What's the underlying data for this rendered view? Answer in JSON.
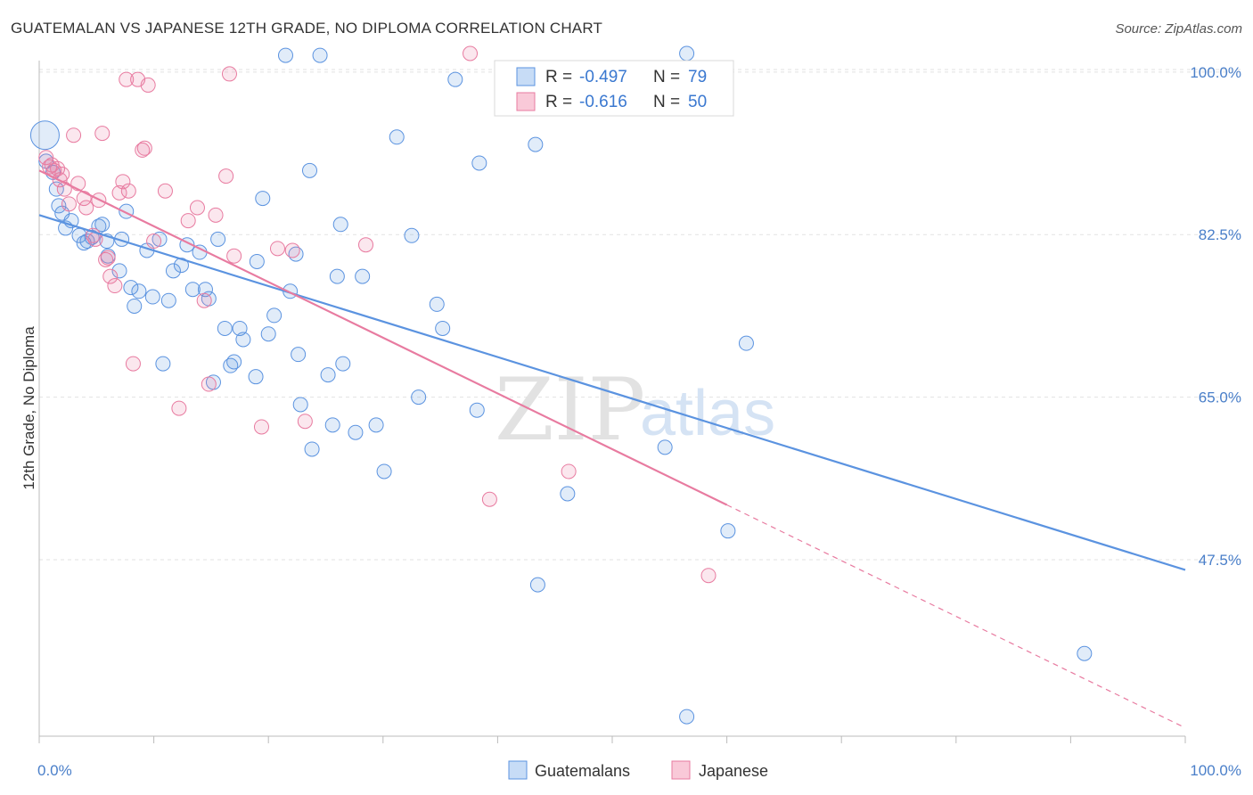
{
  "header": {
    "title": "GUATEMALAN VS JAPANESE 12TH GRADE, NO DIPLOMA CORRELATION CHART",
    "source": "Source: ZipAtlas.com"
  },
  "watermark": {
    "zip": "ZIP",
    "atlas": "atlas"
  },
  "legend": {
    "rows": [
      {
        "r_label": "R =",
        "r_value": "-0.497",
        "n_label": "N =",
        "n_value": "79",
        "color": "#5b93e0"
      },
      {
        "r_label": "R =",
        "r_value": "-0.616",
        "n_label": "N =",
        "n_value": "50",
        "color": "#e87ba0"
      }
    ]
  },
  "bottom_legend": {
    "items": [
      "Guatemalans",
      "Japanese"
    ]
  },
  "chart_data": {
    "type": "scatter",
    "title": "GUATEMALAN VS JAPANESE 12TH GRADE, NO DIPLOMA CORRELATION CHART",
    "xlabel": "",
    "ylabel": "12th Grade, No Diploma",
    "xlim": [
      0,
      100
    ],
    "ylim": [
      28.5,
      102
    ],
    "x_ticks": [
      "0.0%",
      "100.0%"
    ],
    "y_ticks": [
      {
        "value": 100.0,
        "label": "100.0%"
      },
      {
        "value": 82.5,
        "label": "82.5%"
      },
      {
        "value": 65.0,
        "label": "65.0%"
      },
      {
        "value": 47.5,
        "label": "47.5%"
      }
    ],
    "grid": true,
    "legend_position": "top-center",
    "series": [
      {
        "name": "Guatemalans",
        "color": "#5b93e0",
        "trend": {
          "x": [
            0,
            100
          ],
          "y": [
            84.6,
            46.4
          ]
        },
        "points": [
          [
            0.5,
            93.2
          ],
          [
            0.6,
            90.4
          ],
          [
            1.2,
            89.2
          ],
          [
            1.5,
            87.4
          ],
          [
            1.7,
            85.6
          ],
          [
            2.0,
            84.8
          ],
          [
            2.3,
            83.2
          ],
          [
            2.8,
            84.0
          ],
          [
            3.5,
            82.4
          ],
          [
            3.9,
            81.6
          ],
          [
            4.2,
            81.8
          ],
          [
            4.6,
            82.2
          ],
          [
            5.2,
            83.4
          ],
          [
            5.5,
            83.6
          ],
          [
            5.9,
            81.8
          ],
          [
            6.0,
            80.2
          ],
          [
            7.0,
            78.6
          ],
          [
            7.2,
            82.0
          ],
          [
            7.6,
            85.0
          ],
          [
            8.0,
            76.8
          ],
          [
            8.3,
            74.8
          ],
          [
            8.7,
            76.4
          ],
          [
            9.4,
            80.8
          ],
          [
            9.9,
            75.8
          ],
          [
            10.5,
            82.0
          ],
          [
            10.8,
            68.6
          ],
          [
            11.3,
            75.4
          ],
          [
            11.7,
            78.6
          ],
          [
            12.4,
            79.2
          ],
          [
            12.9,
            81.4
          ],
          [
            13.4,
            76.6
          ],
          [
            14.0,
            80.6
          ],
          [
            14.5,
            76.6
          ],
          [
            14.8,
            75.6
          ],
          [
            15.2,
            66.6
          ],
          [
            15.6,
            82.0
          ],
          [
            16.2,
            72.4
          ],
          [
            16.7,
            68.4
          ],
          [
            17.0,
            68.8
          ],
          [
            17.5,
            72.4
          ],
          [
            17.8,
            71.2
          ],
          [
            18.9,
            67.2
          ],
          [
            19.0,
            79.6
          ],
          [
            19.5,
            86.4
          ],
          [
            20.0,
            71.8
          ],
          [
            20.5,
            73.8
          ],
          [
            21.5,
            101.8
          ],
          [
            21.9,
            76.4
          ],
          [
            22.4,
            80.4
          ],
          [
            22.6,
            69.6
          ],
          [
            22.8,
            64.2
          ],
          [
            23.6,
            89.4
          ],
          [
            23.8,
            59.4
          ],
          [
            24.5,
            101.8
          ],
          [
            25.2,
            67.4
          ],
          [
            25.6,
            62.0
          ],
          [
            26.0,
            78.0
          ],
          [
            26.3,
            83.6
          ],
          [
            26.5,
            68.6
          ],
          [
            27.6,
            61.2
          ],
          [
            28.2,
            78.0
          ],
          [
            29.4,
            62.0
          ],
          [
            30.1,
            57.0
          ],
          [
            31.2,
            93.0
          ],
          [
            32.5,
            82.4
          ],
          [
            33.1,
            65.0
          ],
          [
            34.7,
            75.0
          ],
          [
            35.2,
            72.4
          ],
          [
            36.3,
            99.2
          ],
          [
            38.2,
            63.6
          ],
          [
            38.4,
            90.2
          ],
          [
            43.3,
            92.2
          ],
          [
            43.5,
            44.8
          ],
          [
            46.1,
            54.6
          ],
          [
            54.6,
            59.6
          ],
          [
            56.5,
            102.0
          ],
          [
            60.1,
            50.6
          ],
          [
            61.7,
            70.8
          ],
          [
            91.2,
            37.4
          ],
          [
            56.5,
            30.6
          ]
        ],
        "sizes": [
          2,
          1,
          1,
          1,
          1,
          1,
          1,
          1,
          1,
          1,
          1,
          1,
          1,
          1,
          1,
          1,
          1,
          1,
          1,
          1,
          1,
          1,
          1,
          1,
          1,
          1,
          1,
          1,
          1,
          1,
          1,
          1,
          1,
          1,
          1,
          1,
          1,
          1,
          1,
          1,
          1,
          1,
          1,
          1,
          1,
          1,
          1,
          1,
          1,
          1,
          1,
          1,
          1,
          1,
          1,
          1,
          1,
          1,
          1,
          1,
          1,
          1,
          1,
          1,
          1,
          1,
          1,
          1,
          1,
          1,
          1,
          1,
          1,
          1,
          1,
          1,
          1,
          1,
          1
        ]
      },
      {
        "name": "Japanese",
        "color": "#e87ba0",
        "trend": {
          "x": [
            0,
            60
          ],
          "y": [
            89.4,
            53.4
          ],
          "dashed_to": {
            "x": 100,
            "y": 29.4
          }
        },
        "points": [
          [
            0.6,
            90.8
          ],
          [
            0.9,
            89.8
          ],
          [
            1.1,
            90.0
          ],
          [
            1.3,
            89.4
          ],
          [
            1.6,
            89.6
          ],
          [
            1.8,
            88.4
          ],
          [
            2.0,
            89.0
          ],
          [
            2.2,
            87.4
          ],
          [
            2.6,
            85.8
          ],
          [
            3.0,
            93.2
          ],
          [
            3.4,
            88.0
          ],
          [
            3.9,
            86.4
          ],
          [
            4.1,
            85.4
          ],
          [
            4.7,
            82.4
          ],
          [
            4.9,
            82.0
          ],
          [
            5.2,
            86.2
          ],
          [
            5.5,
            93.4
          ],
          [
            5.8,
            79.8
          ],
          [
            6.0,
            80.0
          ],
          [
            6.2,
            78.0
          ],
          [
            6.6,
            77.0
          ],
          [
            7.0,
            87.0
          ],
          [
            7.3,
            88.2
          ],
          [
            7.6,
            99.2
          ],
          [
            7.8,
            87.2
          ],
          [
            8.2,
            68.6
          ],
          [
            8.6,
            99.2
          ],
          [
            9.0,
            91.6
          ],
          [
            9.2,
            91.8
          ],
          [
            9.5,
            98.6
          ],
          [
            10.0,
            81.8
          ],
          [
            11.0,
            87.2
          ],
          [
            12.2,
            63.8
          ],
          [
            13.0,
            84.0
          ],
          [
            13.8,
            85.4
          ],
          [
            14.4,
            75.4
          ],
          [
            14.8,
            66.4
          ],
          [
            15.4,
            84.6
          ],
          [
            16.3,
            88.8
          ],
          [
            16.6,
            99.8
          ],
          [
            17.0,
            80.2
          ],
          [
            19.4,
            61.8
          ],
          [
            20.8,
            81.0
          ],
          [
            22.1,
            80.8
          ],
          [
            23.2,
            62.4
          ],
          [
            28.5,
            81.4
          ],
          [
            37.6,
            102.0
          ],
          [
            39.3,
            54.0
          ],
          [
            46.2,
            57.0
          ],
          [
            58.4,
            45.8
          ]
        ],
        "sizes": [
          1,
          1,
          1,
          1,
          1,
          1,
          1,
          1,
          1,
          1,
          1,
          1,
          1,
          1,
          1,
          1,
          1,
          1,
          1,
          1,
          1,
          1,
          1,
          1,
          1,
          1,
          1,
          1,
          1,
          1,
          1,
          1,
          1,
          1,
          1,
          1,
          1,
          1,
          1,
          1,
          1,
          1,
          1,
          1,
          1,
          1,
          1,
          1,
          1,
          1
        ]
      }
    ]
  }
}
